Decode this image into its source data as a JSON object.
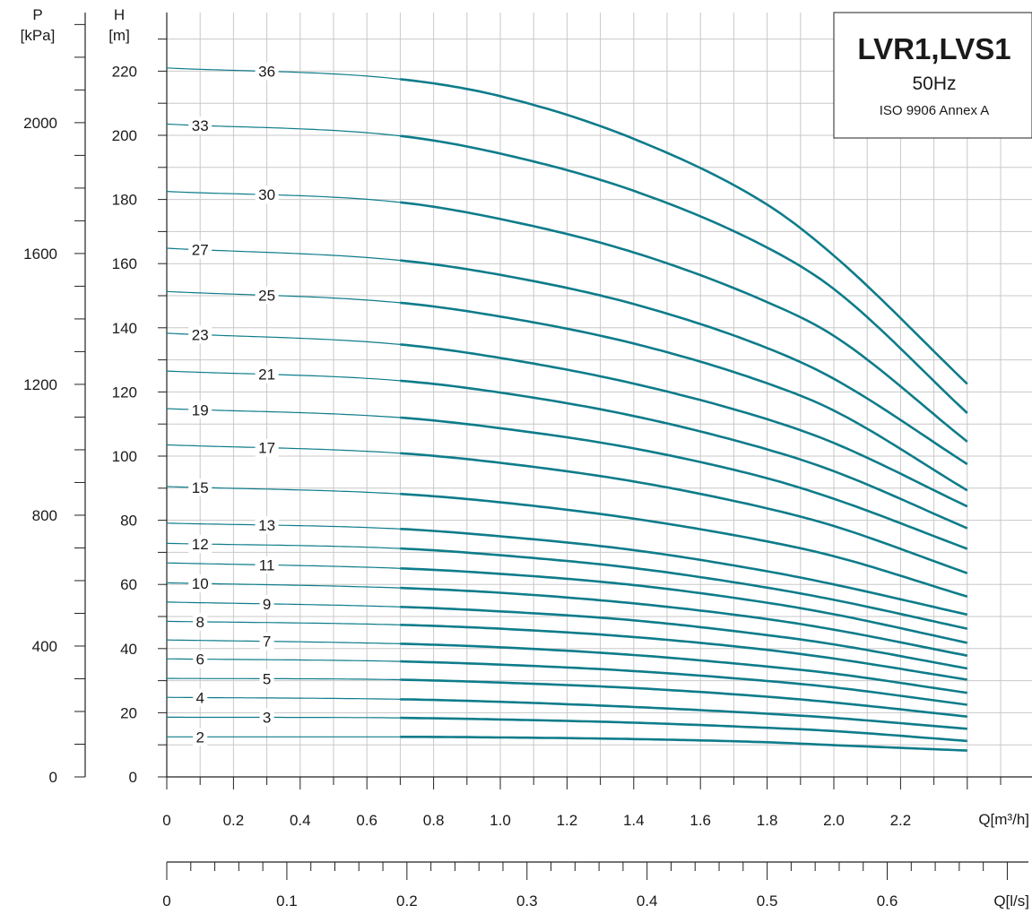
{
  "chart_data": {
    "type": "line",
    "title": "LVR1,LVS1",
    "subtitle": "50Hz",
    "standard": "ISO 9906 Annex A",
    "curve_color": "#0e7c8a",
    "grid": true,
    "axes": {
      "x_primary": {
        "label": "Q[m³/h]",
        "range": [
          0,
          2.4
        ],
        "ticks": [
          "0",
          "0.2",
          "0.4",
          "0.6",
          "0.8",
          "1.0",
          "1.2",
          "1.4",
          "1.6",
          "1.8",
          "2.0",
          "2.2"
        ],
        "tick_values": [
          0,
          0.2,
          0.4,
          0.6,
          0.8,
          1.0,
          1.2,
          1.4,
          1.6,
          1.8,
          2.0,
          2.2
        ]
      },
      "x_secondary": {
        "label": "Q[l/s]",
        "ticks": [
          "0",
          "0.1",
          "0.2",
          "0.3",
          "0.4",
          "0.5",
          "0.6"
        ],
        "tick_values": [
          0,
          0.1,
          0.2,
          0.3,
          0.4,
          0.5,
          0.6
        ]
      },
      "y_head": {
        "label_top": "H",
        "label_bottom": "[m]",
        "range": [
          0,
          240
        ],
        "ticks": [
          "0",
          "20",
          "40",
          "60",
          "80",
          "100",
          "120",
          "140",
          "160",
          "180",
          "200",
          "220"
        ],
        "tick_values": [
          0,
          20,
          40,
          60,
          80,
          100,
          120,
          140,
          160,
          180,
          200,
          220
        ]
      },
      "y_pressure": {
        "label_top": "P",
        "label_bottom": "[kPa]",
        "ticks": [
          "0",
          "400",
          "800",
          "1200",
          "1600",
          "2000"
        ],
        "tick_values": [
          0,
          400,
          800,
          1200,
          1600,
          2000
        ]
      }
    },
    "q_points": [
      0,
      0.7,
      1.0,
      1.4,
      1.8,
      2.0,
      2.4
    ],
    "series": [
      {
        "name": "2",
        "label_x": 0.1,
        "values": [
          12.5,
          12.5,
          12.3,
          11.8,
          10.8,
          9.9,
          8.2
        ]
      },
      {
        "name": "3",
        "label_x": 0.3,
        "values": [
          18.6,
          18.4,
          17.9,
          16.9,
          15.3,
          14.3,
          11.2
        ]
      },
      {
        "name": "4",
        "label_x": 0.1,
        "values": [
          24.8,
          24.2,
          23.4,
          21.8,
          19.7,
          18.4,
          15.0
        ]
      },
      {
        "name": "5",
        "label_x": 0.3,
        "values": [
          30.7,
          30.3,
          29.4,
          27.7,
          25.0,
          23.2,
          18.8
        ]
      },
      {
        "name": "6",
        "label_x": 0.1,
        "values": [
          36.8,
          36.0,
          35.0,
          33.0,
          29.9,
          27.9,
          22.5
        ]
      },
      {
        "name": "7",
        "label_x": 0.3,
        "values": [
          42.7,
          41.5,
          40.4,
          38.0,
          34.4,
          32.2,
          26.2
        ]
      },
      {
        "name": "8",
        "label_x": 0.1,
        "values": [
          48.5,
          47.4,
          46.2,
          43.6,
          39.6,
          36.9,
          30.3
        ]
      },
      {
        "name": "9",
        "label_x": 0.3,
        "values": [
          54.5,
          53.0,
          51.6,
          48.8,
          44.2,
          41.3,
          33.8
        ]
      },
      {
        "name": "10",
        "label_x": 0.1,
        "values": [
          60.5,
          58.9,
          57.4,
          54.1,
          49.2,
          45.9,
          37.8
        ]
      },
      {
        "name": "11",
        "label_x": 0.3,
        "values": [
          66.7,
          65.0,
          63.3,
          59.8,
          54.3,
          50.7,
          41.8
        ]
      },
      {
        "name": "12",
        "label_x": 0.1,
        "values": [
          72.8,
          71.2,
          69.1,
          65.1,
          59.0,
          55.2,
          46.2
        ]
      },
      {
        "name": "13",
        "label_x": 0.3,
        "values": [
          79.1,
          77.3,
          75.0,
          70.7,
          64.1,
          60.0,
          50.6
        ]
      },
      {
        "name": "15",
        "label_x": 0.1,
        "values": [
          90.5,
          88.2,
          85.6,
          80.5,
          73.4,
          68.8,
          56.2
        ]
      },
      {
        "name": "17",
        "label_x": 0.3,
        "values": [
          103.5,
          100.9,
          97.9,
          92.1,
          83.7,
          78.2,
          63.5
        ]
      },
      {
        "name": "19",
        "label_x": 0.1,
        "values": [
          114.8,
          112.0,
          108.7,
          102.4,
          93.1,
          86.7,
          71.1
        ]
      },
      {
        "name": "21",
        "label_x": 0.3,
        "values": [
          126.5,
          123.5,
          119.8,
          112.5,
          102.1,
          95.3,
          77.5
        ]
      },
      {
        "name": "23",
        "label_x": 0.1,
        "values": [
          138.3,
          134.8,
          130.6,
          122.6,
          111.5,
          104.1,
          84.3
        ]
      },
      {
        "name": "25",
        "label_x": 0.3,
        "values": [
          151.3,
          147.8,
          143.5,
          135.1,
          122.7,
          114.2,
          89.3
        ]
      },
      {
        "name": "27",
        "label_x": 0.1,
        "values": [
          164.8,
          161.0,
          156.5,
          147.4,
          133.7,
          124.1,
          97.5
        ]
      },
      {
        "name": "30",
        "label_x": 0.3,
        "values": [
          182.5,
          179.1,
          173.9,
          163.5,
          148.0,
          137.5,
          104.5
        ]
      },
      {
        "name": "33",
        "label_x": 0.1,
        "values": [
          203.5,
          199.8,
          194.3,
          182.7,
          165.0,
          152.1,
          113.4
        ]
      },
      {
        "name": "36",
        "label_x": 0.3,
        "values": [
          221.0,
          217.5,
          212.2,
          198.9,
          178.4,
          162.5,
          122.5
        ]
      }
    ]
  }
}
